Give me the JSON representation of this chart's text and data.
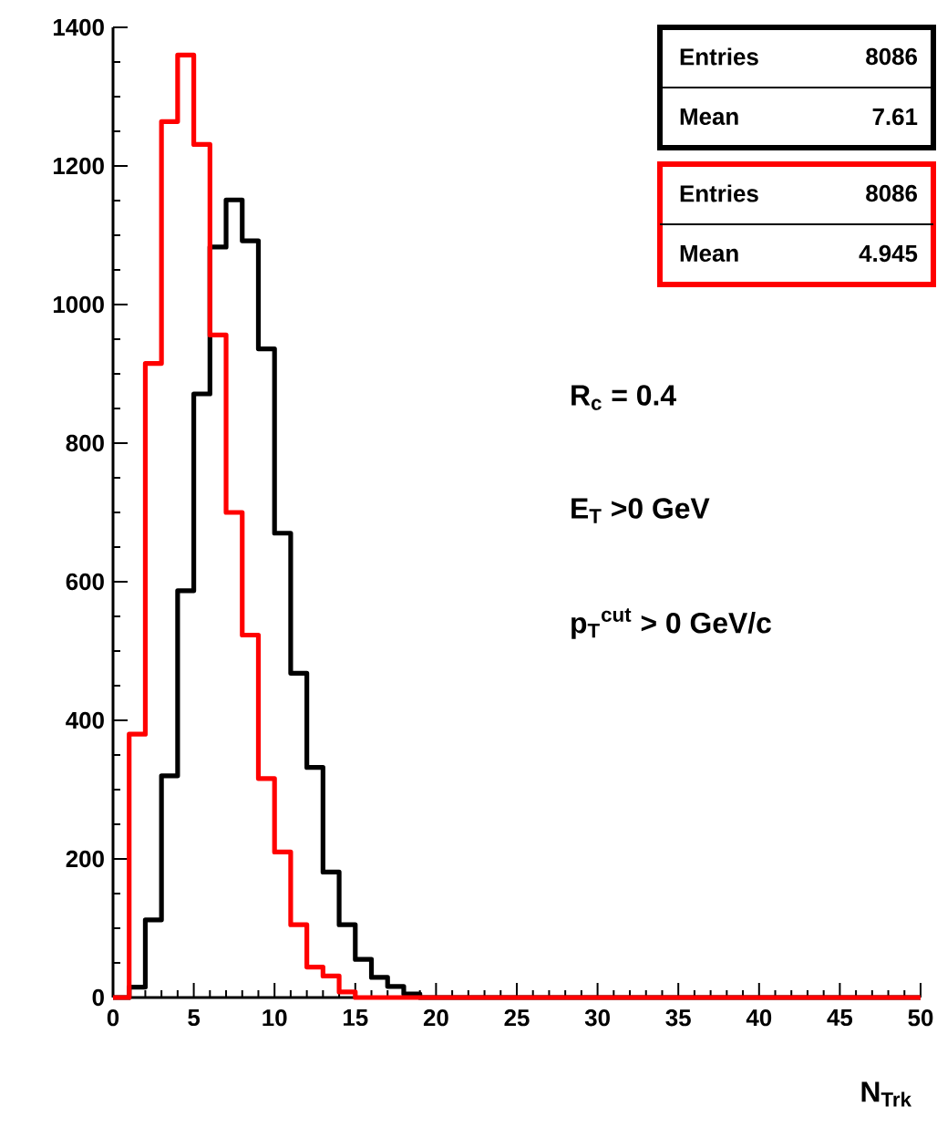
{
  "chart_data": {
    "type": "histogram",
    "xlabel": "N$_{Trk}$",
    "bins": [
      0,
      1,
      2,
      3,
      4,
      5,
      6,
      7,
      8,
      9,
      10,
      11,
      12,
      13,
      14,
      15,
      16,
      17,
      18,
      19,
      20,
      21,
      22,
      23,
      24,
      25,
      26,
      27,
      28,
      29,
      30,
      31,
      32,
      33,
      34,
      35,
      36,
      37,
      38,
      39,
      40,
      41,
      42,
      43,
      44,
      45,
      46,
      47,
      48,
      49,
      50
    ],
    "series": [
      {
        "color": "#000000",
        "values": [
          0,
          15,
          112,
          320,
          587,
          871,
          1083,
          1151,
          1092,
          936,
          670,
          468,
          332,
          181,
          105,
          55,
          29,
          16,
          5,
          0,
          0,
          0,
          0,
          0,
          0,
          0,
          0,
          0,
          0,
          0,
          0,
          0,
          0,
          0,
          0,
          0,
          0,
          0,
          0,
          0,
          0,
          0,
          0,
          0,
          0,
          0,
          0,
          0,
          0,
          0
        ]
      },
      {
        "color": "#ff0000",
        "values": [
          0,
          380,
          915,
          1264,
          1360,
          1231,
          956,
          700,
          523,
          316,
          210,
          105,
          44,
          31,
          8,
          0,
          0,
          0,
          0,
          0,
          0,
          0,
          0,
          0,
          0,
          0,
          0,
          0,
          0,
          0,
          0,
          0,
          0,
          0,
          0,
          0,
          0,
          0,
          0,
          0,
          0,
          0,
          0,
          0,
          0,
          0,
          0,
          0,
          0,
          0
        ]
      }
    ],
    "xlim": [
      0,
      50
    ],
    "ylim": [
      0,
      1400
    ],
    "xticks": [
      0,
      5,
      10,
      15,
      20,
      25,
      30,
      35,
      40,
      45,
      50
    ],
    "yticks": [
      0,
      200,
      400,
      600,
      800,
      1000,
      1200,
      1400
    ],
    "grid": false,
    "annotations": [
      "Entries",
      "8086",
      "Mean",
      "7.61",
      "Entries",
      "8086",
      "Mean",
      "4.945",
      "R$_{c}$ = 0.4",
      "E$_{T}$ >0 GeV",
      "p$_{T}$$^{cut}$ > 0 GeV/c"
    ]
  }
}
